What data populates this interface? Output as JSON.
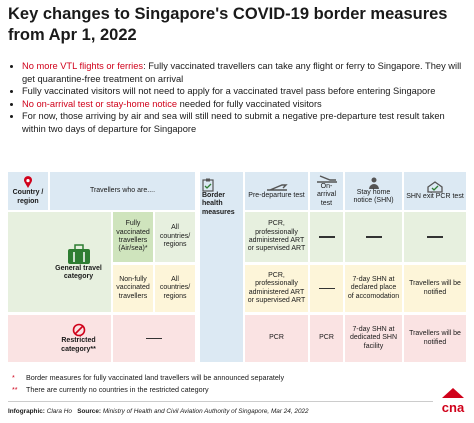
{
  "title": "Key changes to Singapore's COVID-19 border measures from Apr 1, 2022",
  "bullets": [
    {
      "highlight": "No more VTL flights or ferries",
      "text": ": Fully vaccinated travellers can take any flight or ferry to Singapore. They will get quarantine-free treatment on arrival"
    },
    {
      "text": "Fully vaccinated visitors will not need to apply for a vaccinated travel pass before entering Singapore"
    },
    {
      "highlight": "No on-arrival test or stay-home notice",
      "text": " needed for fully vaccinated visitors"
    },
    {
      "text": "For now, those arriving by air and sea will still need to submit a negative pre-departure test result taken within two days of departure for Singapore"
    }
  ],
  "table": {
    "country_header": "Country / region",
    "travellers_header": "Travellers who are....",
    "measures_header": "Border health measures",
    "columns": [
      "Pre-departure test",
      "On-arrival test",
      "Stay home notice (SHN)",
      "SHN exit PCR test"
    ],
    "general_category": "General travel category",
    "restricted_category": "Restricted category**",
    "rows": [
      {
        "travellers": "Fully vaccinated travellers (Air/sea)*",
        "countries": "All countries/ regions",
        "pre_departure": "PCR, professionally administered ART or supervised ART"
      },
      {
        "travellers": "Non-fully vaccinated travellers",
        "countries": "All countries/ regions",
        "pre_departure": "PCR, professionally administered ART or supervised ART",
        "shn": "7-day SHN at declared place of accomodation",
        "exit": "Travellers will be notified"
      },
      {
        "pre_departure": "PCR",
        "on_arrival": "PCR",
        "shn": "7-day SHN at dedicated SHN facility",
        "exit": "Travellers will be notified"
      }
    ]
  },
  "footnotes": [
    {
      "mark": "*",
      "text": "Border measures for fully vaccinated land travellers will be announced separately"
    },
    {
      "mark": "**",
      "text": "There are currently no countries in the restricted category"
    }
  ],
  "footer": {
    "infographic_label": "Infographic:",
    "infographic": "Clara Ho",
    "source_label": "Source:",
    "source": "Ministry of Health and Civil Aviation Authority of Singapore, Mar 24, 2022",
    "logo": "cna"
  }
}
